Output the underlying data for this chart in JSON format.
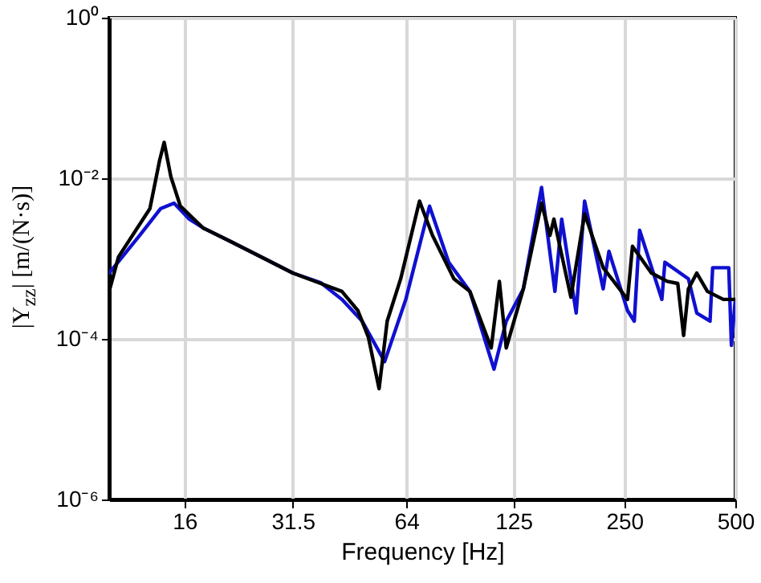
{
  "chart_data": {
    "type": "line",
    "xlabel": "Frequency [Hz]",
    "ylabel": "|Y$_{zz}$| [m/(N·s)]",
    "log": "xy",
    "grid": true,
    "line_style": "solid",
    "xlim": [
      10,
      500
    ],
    "xticks": [
      16,
      31.5,
      64,
      125,
      250,
      500
    ],
    "ylim": [
      1e-06,
      1
    ],
    "yticks": [
      {
        "value": 1e-06,
        "label": "10⁻⁶"
      },
      {
        "value": 0.0001,
        "label": "10⁻⁴"
      },
      {
        "value": 0.01,
        "label": "10⁻²"
      },
      {
        "value": 1,
        "label": "10⁰"
      }
    ],
    "series": [
      {
        "color": "#1010d0",
        "x": [
          10,
          12.1,
          13.8,
          15.0,
          16.5,
          18,
          21.2,
          25.1,
          31.5,
          37.5,
          42.8,
          48.6,
          55.9,
          63.8,
          74,
          83.4,
          95.2,
          110.7,
          119.5,
          133,
          149,
          162,
          169,
          185,
          195,
          219,
          227,
          255,
          266,
          275,
          316,
          322,
          373,
          393,
          427,
          434,
          480,
          488,
          500
        ],
        "values": [
          0.00066,
          0.00194,
          0.0042,
          0.0049,
          0.0031,
          0.0024,
          0.00166,
          0.00112,
          0.00066,
          0.0005,
          0.00031,
          0.000166,
          5.2e-05,
          0.00031,
          0.0045,
          0.0009,
          0.00039,
          4.2e-05,
          0.000166,
          0.00042,
          0.0077,
          0.00039,
          0.0031,
          0.00021,
          0.0052,
          0.00042,
          0.00123,
          0.000225,
          0.000166,
          0.00225,
          0.00031,
          0.0009,
          0.00056,
          0.00021,
          0.000166,
          0.00077,
          0.00077,
          8.3e-05,
          0.00031
        ]
      },
      {
        "color": "#000000",
        "x": [
          10,
          10.6,
          12.9,
          13.7,
          14.1,
          14.7,
          15.6,
          18,
          21.2,
          25.1,
          31.5,
          37.5,
          42.8,
          47.3,
          50.5,
          54,
          56.8,
          61.8,
          69.5,
          75.4,
          86.2,
          95.2,
          108.8,
          114.5,
          119.5,
          133,
          149,
          157,
          161,
          179,
          195,
          219,
          255,
          263,
          296,
          327,
          349,
          362,
          373,
          393,
          420,
          464,
          500
        ],
        "values": [
          0.00039,
          0.00105,
          0.0042,
          0.0166,
          0.028,
          0.0105,
          0.0045,
          0.0024,
          0.00166,
          0.00112,
          0.00066,
          0.00049,
          0.00039,
          0.000225,
          0.000105,
          2.4e-05,
          0.000166,
          0.00056,
          0.0052,
          0.00194,
          0.00056,
          0.00039,
          7.7e-05,
          0.00052,
          7.7e-05,
          0.00042,
          0.0049,
          0.00194,
          0.0031,
          0.00033,
          0.0036,
          0.00077,
          0.00031,
          0.00142,
          0.00066,
          0.00052,
          0.00049,
          0.00011,
          0.00042,
          0.00066,
          0.00039,
          0.00031,
          0.00031
        ]
      }
    ]
  }
}
